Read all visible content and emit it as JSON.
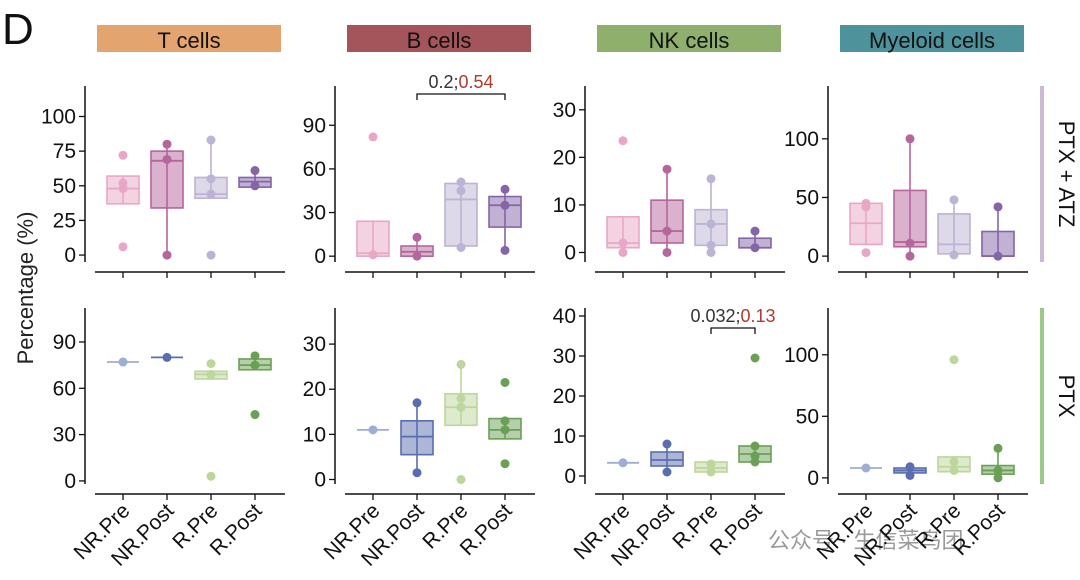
{
  "panel_letter": "D",
  "y_axis_label": "Percentage (%)",
  "columns": [
    {
      "title": "T cells",
      "color": "#E3A46F"
    },
    {
      "title": "B cells",
      "color": "#A4555C"
    },
    {
      "title": "NK cells",
      "color": "#8FB06C"
    },
    {
      "title": "Myeloid cells",
      "color": "#4E939C"
    }
  ],
  "rows": [
    {
      "label": "PTX + ATZ",
      "strip_color": "#CDB9D6"
    },
    {
      "label": "PTX",
      "strip_color": "#9CC98A"
    }
  ],
  "x_categories": [
    "NR.Pre",
    "NR.Post",
    "R.Pre",
    "R.Post"
  ],
  "watermark": "公众号 · 生信菜鸟团",
  "chart_data": {
    "type": "box",
    "facets": [
      {
        "row": "PTX + ATZ",
        "column": "T cells",
        "ylim": [
          -5,
          122
        ],
        "yticks": [
          0,
          25,
          50,
          75,
          100
        ],
        "groups": [
          {
            "name": "NR.Pre",
            "color": "#E8A7C6",
            "q1": 37,
            "median": 48,
            "q3": 57,
            "whisker_low": 37,
            "whisker_high": 57,
            "points": [
              72,
              52,
              48,
              6
            ]
          },
          {
            "name": "NR.Post",
            "color": "#B5669B",
            "q1": 34,
            "median": 68,
            "q3": 75,
            "whisker_low": 0,
            "whisker_high": 80,
            "points": [
              80,
              69,
              0
            ]
          },
          {
            "name": "R.Pre",
            "color": "#BDB3D4",
            "q1": 41,
            "median": 44,
            "q3": 56,
            "whisker_low": 41,
            "whisker_high": 83,
            "points": [
              83,
              55,
              44,
              0
            ]
          },
          {
            "name": "R.Post",
            "color": "#8465A8",
            "q1": 49,
            "median": 53,
            "q3": 56,
            "whisker_low": 49,
            "whisker_high": 61,
            "points": [
              61,
              50
            ]
          }
        ]
      },
      {
        "row": "PTX + ATZ",
        "column": "B cells",
        "ylim": [
          -4,
          117
        ],
        "yticks": [
          0,
          30,
          60,
          90
        ],
        "pvalue": {
          "from": "NR.Post",
          "to": "R.Post",
          "value_a": "0.2",
          "sep": ";",
          "value_b": "0.54"
        },
        "groups": [
          {
            "name": "NR.Pre",
            "color": "#E8A7C6",
            "q1": 0,
            "median": 2,
            "q3": 24,
            "whisker_low": 0,
            "whisker_high": 24,
            "points": [
              82,
              1
            ]
          },
          {
            "name": "NR.Post",
            "color": "#B5669B",
            "q1": 0,
            "median": 3,
            "q3": 7,
            "whisker_low": 0,
            "whisker_high": 13,
            "points": [
              13,
              0
            ]
          },
          {
            "name": "R.Pre",
            "color": "#BDB3D4",
            "q1": 7,
            "median": 39,
            "q3": 50,
            "whisker_low": 7,
            "whisker_high": 50,
            "points": [
              51,
              45,
              6
            ]
          },
          {
            "name": "R.Post",
            "color": "#8465A8",
            "q1": 20,
            "median": 35,
            "q3": 41,
            "whisker_low": 4,
            "whisker_high": 46,
            "points": [
              46,
              35,
              4
            ]
          }
        ]
      },
      {
        "row": "PTX + ATZ",
        "column": "NK cells",
        "ylim": [
          -2,
          35
        ],
        "yticks": [
          0,
          10,
          20,
          30
        ],
        "groups": [
          {
            "name": "NR.Pre",
            "color": "#E8A7C6",
            "q1": 1,
            "median": 2,
            "q3": 7.5,
            "whisker_low": 1,
            "whisker_high": 7.5,
            "points": [
              23.5,
              2,
              0
            ]
          },
          {
            "name": "NR.Post",
            "color": "#B5669B",
            "q1": 2,
            "median": 4.5,
            "q3": 11,
            "whisker_low": 0,
            "whisker_high": 17.5,
            "points": [
              17.5,
              4.5,
              0
            ]
          },
          {
            "name": "R.Pre",
            "color": "#BDB3D4",
            "q1": 1.5,
            "median": 6,
            "q3": 9,
            "whisker_low": 0,
            "whisker_high": 15.5,
            "points": [
              15.5,
              6,
              1.5,
              0
            ]
          },
          {
            "name": "R.Post",
            "color": "#8465A8",
            "q1": 1,
            "median": 1,
            "q3": 3,
            "whisker_low": 1,
            "whisker_high": 4.5,
            "points": [
              4.5,
              1
            ]
          }
        ]
      },
      {
        "row": "PTX + ATZ",
        "column": "Myeloid cells",
        "ylim": [
          -5,
          145
        ],
        "yticks": [
          0,
          50,
          100
        ],
        "groups": [
          {
            "name": "NR.Pre",
            "color": "#E8A7C6",
            "q1": 10,
            "median": 28,
            "q3": 45,
            "whisker_low": 10,
            "whisker_high": 45,
            "points": [
              45,
              42,
              3
            ]
          },
          {
            "name": "NR.Post",
            "color": "#B5669B",
            "q1": 8,
            "median": 12,
            "q3": 56,
            "whisker_low": 0,
            "whisker_high": 100,
            "points": [
              100,
              11,
              0
            ]
          },
          {
            "name": "R.Pre",
            "color": "#BDB3D4",
            "q1": 2,
            "median": 10,
            "q3": 36,
            "whisker_low": 2,
            "whisker_high": 48,
            "points": [
              48,
              1
            ]
          },
          {
            "name": "R.Post",
            "color": "#8465A8",
            "q1": 0,
            "median": 0,
            "q3": 21,
            "whisker_low": 0,
            "whisker_high": 42,
            "points": [
              42,
              0
            ]
          }
        ]
      },
      {
        "row": "PTX",
        "column": "T cells",
        "ylim": [
          -2,
          112
        ],
        "yticks": [
          0,
          30,
          60,
          90
        ],
        "groups": [
          {
            "name": "NR.Pre",
            "color": "#9DADD6",
            "q1": 77,
            "median": 77,
            "q3": 77,
            "whisker_low": 77,
            "whisker_high": 77,
            "points": [
              77
            ]
          },
          {
            "name": "NR.Post",
            "color": "#5A6DAE",
            "q1": 80,
            "median": 80,
            "q3": 80,
            "whisker_low": 80,
            "whisker_high": 80,
            "points": [
              80
            ]
          },
          {
            "name": "R.Pre",
            "color": "#BDD69B",
            "q1": 66,
            "median": 69,
            "q3": 71,
            "whisker_low": 66,
            "whisker_high": 71,
            "points": [
              76,
              69,
              3
            ]
          },
          {
            "name": "R.Post",
            "color": "#6AA055",
            "q1": 72,
            "median": 75,
            "q3": 79,
            "whisker_low": 72,
            "whisker_high": 81,
            "points": [
              81,
              75,
              43
            ]
          }
        ]
      },
      {
        "row": "PTX",
        "column": "B cells",
        "ylim": [
          -1,
          38
        ],
        "yticks": [
          0,
          10,
          20,
          30
        ],
        "groups": [
          {
            "name": "NR.Pre",
            "color": "#9DADD6",
            "q1": 11,
            "median": 11,
            "q3": 11,
            "whisker_low": 11,
            "whisker_high": 11,
            "points": [
              11
            ]
          },
          {
            "name": "NR.Post",
            "color": "#5A6DAE",
            "q1": 5.5,
            "median": 9.5,
            "q3": 13,
            "whisker_low": 1.5,
            "whisker_high": 17,
            "points": [
              17,
              1.5
            ]
          },
          {
            "name": "R.Pre",
            "color": "#BDD69B",
            "q1": 12,
            "median": 16,
            "q3": 19,
            "whisker_low": 12,
            "whisker_high": 25,
            "points": [
              25.5,
              18,
              16,
              0
            ]
          },
          {
            "name": "R.Post",
            "color": "#6AA055",
            "q1": 9,
            "median": 11,
            "q3": 13.5,
            "whisker_low": 9,
            "whisker_high": 13.5,
            "points": [
              21.5,
              13,
              11,
              3.5
            ]
          }
        ]
      },
      {
        "row": "PTX",
        "column": "NK cells",
        "ylim": [
          -2,
          42
        ],
        "yticks": [
          0,
          10,
          20,
          30,
          40
        ],
        "pvalue": {
          "from": "R.Pre",
          "to": "R.Post",
          "value_a": "0.032",
          "sep": ";",
          "value_b": "0.13"
        },
        "groups": [
          {
            "name": "NR.Pre",
            "color": "#9DADD6",
            "q1": 3.3,
            "median": 3.3,
            "q3": 3.3,
            "whisker_low": 3.3,
            "whisker_high": 3.3,
            "points": [
              3.3
            ]
          },
          {
            "name": "NR.Post",
            "color": "#5A6DAE",
            "q1": 2.5,
            "median": 4,
            "q3": 6,
            "whisker_low": 1,
            "whisker_high": 8,
            "points": [
              8,
              1
            ]
          },
          {
            "name": "R.Pre",
            "color": "#BDD69B",
            "q1": 1,
            "median": 2,
            "q3": 3.5,
            "whisker_low": 0.5,
            "whisker_high": 3.5,
            "points": [
              3,
              1
            ]
          },
          {
            "name": "R.Post",
            "color": "#6AA055",
            "q1": 3.5,
            "median": 5.5,
            "q3": 7.5,
            "whisker_low": 3.5,
            "whisker_high": 7.5,
            "points": [
              29.5,
              7.5,
              5,
              3.5
            ]
          }
        ]
      },
      {
        "row": "PTX",
        "column": "Myeloid cells",
        "ylim": [
          -5,
          138
        ],
        "yticks": [
          0,
          50,
          100
        ],
        "groups": [
          {
            "name": "NR.Pre",
            "color": "#9DADD6",
            "q1": 8,
            "median": 8,
            "q3": 8,
            "whisker_low": 8,
            "whisker_high": 8,
            "points": [
              8
            ]
          },
          {
            "name": "NR.Post",
            "color": "#5A6DAE",
            "q1": 4,
            "median": 6,
            "q3": 8,
            "whisker_low": 1,
            "whisker_high": 10,
            "points": [
              9,
              2
            ]
          },
          {
            "name": "R.Pre",
            "color": "#BDD69B",
            "q1": 5,
            "median": 9,
            "q3": 17,
            "whisker_low": 5,
            "whisker_high": 17,
            "points": [
              96,
              13,
              6
            ]
          },
          {
            "name": "R.Post",
            "color": "#6AA055",
            "q1": 3,
            "median": 6,
            "q3": 10,
            "whisker_low": 0,
            "whisker_high": 24,
            "points": [
              24,
              6,
              0
            ]
          }
        ]
      }
    ]
  }
}
